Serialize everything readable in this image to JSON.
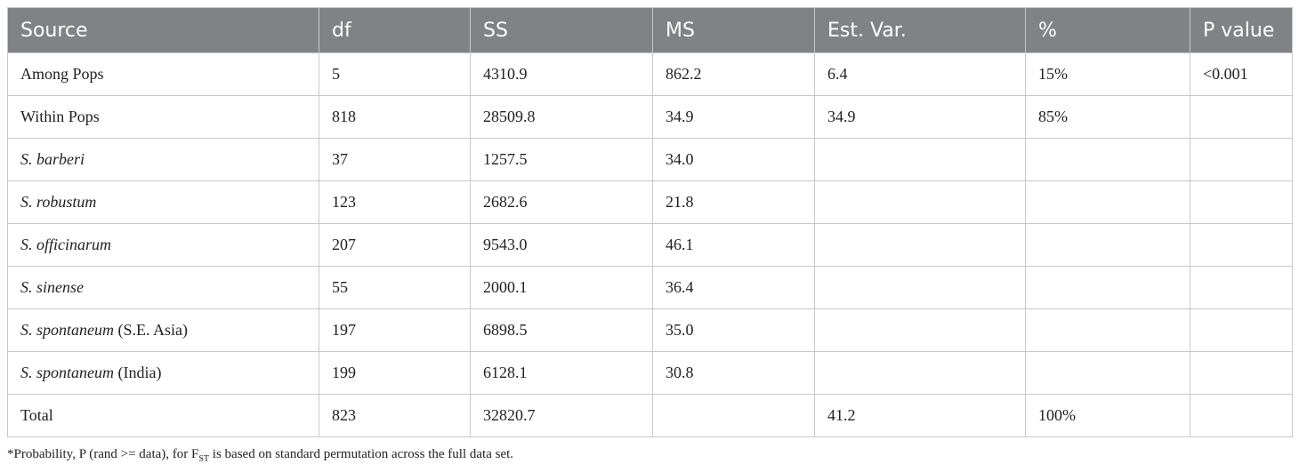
{
  "table": {
    "header": [
      "Source",
      "df",
      "SS",
      "MS",
      "Est. Var.",
      "%",
      "P value"
    ],
    "rows": [
      [
        "Among Pops",
        "5",
        "4310.9",
        "862.2",
        "6.4",
        "15%",
        "<0.001"
      ],
      [
        "Within Pops",
        "818",
        "28509.8",
        "34.9",
        "34.9",
        "85%",
        null
      ],
      [
        {
          "italic": "S. barberi"
        },
        "37",
        "1257.5",
        "34.0",
        null,
        null,
        null
      ],
      [
        {
          "italic": "S. robustum"
        },
        "123",
        "2682.6",
        "21.8",
        null,
        null,
        null
      ],
      [
        {
          "italic": "S. officinarum"
        },
        "207",
        "9543.0",
        "46.1",
        null,
        null,
        null
      ],
      [
        {
          "italic": "S. sinense"
        },
        "55",
        "2000.1",
        "36.4",
        null,
        null,
        null
      ],
      [
        {
          "italic": "S. spontaneum",
          "rest": " (S.E. Asia)"
        },
        "197",
        "6898.5",
        "35.0",
        null,
        null,
        null
      ],
      [
        {
          "italic": "S. spontaneum",
          "rest": " (India)"
        },
        "199",
        "6128.1",
        "30.8",
        null,
        null,
        null
      ],
      [
        "Total",
        "823",
        "32820.7",
        null,
        "41.2",
        "100%",
        null
      ]
    ]
  },
  "footnote": {
    "before": "*Probability, P (rand >= data), for F",
    "subscript": "ST",
    "after": " is based on standard permutation across the full data set."
  }
}
